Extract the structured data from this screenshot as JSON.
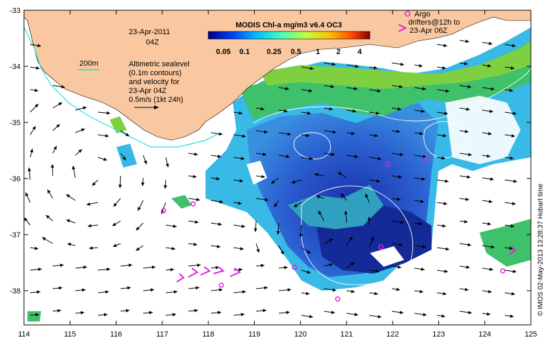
{
  "map": {
    "x_ticks": [
      "114",
      "115",
      "116",
      "117",
      "118",
      "119",
      "120",
      "121",
      "122",
      "123",
      "124",
      "125"
    ],
    "y_ticks": [
      "-33",
      "-34",
      "-35",
      "-36",
      "-37",
      "-38"
    ],
    "date_label": "23-Apr-2011",
    "time_label": "04Z",
    "contour_depth_label": "200m",
    "sealevel_note": [
      "Altimetric sealevel",
      "(0.1m contours)",
      "and velocity for",
      "23-Apr 04Z"
    ],
    "velocity_scale_label": "0.5m/s (1kt 24h)",
    "colorbar_title": "MODIS Chl-a mg/m3 v6.4 OC3",
    "colorbar_ticks": [
      "0.05",
      "0.1",
      "0.25",
      "0.5",
      "1",
      "2",
      "4"
    ],
    "argo_legend": [
      "Argo",
      "drifters@12h to",
      "23-Apr 06Z"
    ],
    "credit": "© IMOS 02-May-2013 13:28:37 Hobart time",
    "colors": {
      "land": "#f9c8a0",
      "shelf_contour": "#22e0e0",
      "argo": "#e020e0",
      "sealevel_contour": "#ffffff"
    }
  }
}
